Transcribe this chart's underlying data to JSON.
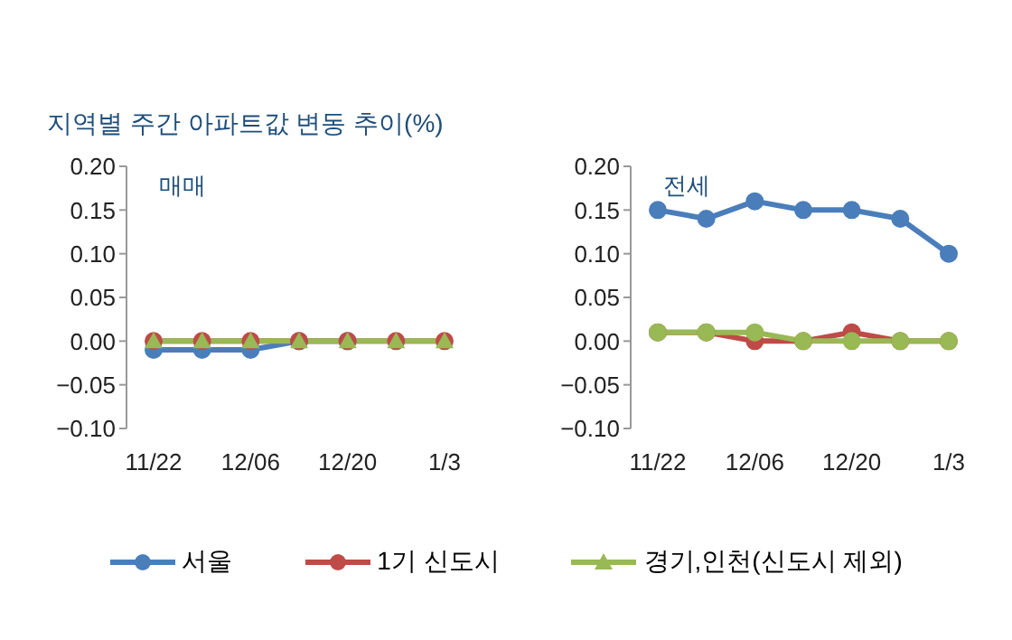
{
  "chart_data": [
    {
      "type": "line",
      "title": "지역별 주간 아파트값 변동 추이(%)",
      "subtitle": "매매",
      "categories": [
        "11/22",
        null,
        "12/06",
        null,
        "12/20",
        null,
        "1/3"
      ],
      "series": [
        {
          "name": "서울",
          "color": "#4a7ebb",
          "marker": "circle",
          "values": [
            -0.01,
            -0.01,
            -0.01,
            0,
            0,
            null,
            null
          ]
        },
        {
          "name": "1기 신도시",
          "color": "#be4b48",
          "marker": "circle",
          "values": [
            0,
            0,
            0,
            0,
            0,
            0,
            0
          ]
        },
        {
          "name": "경기,인천(신도시 제외)",
          "color": "#98b954",
          "marker": "triangle",
          "values": [
            0,
            0,
            0,
            0,
            0,
            0,
            0
          ]
        }
      ],
      "ylim": [
        -0.1,
        0.2
      ],
      "yticks": [
        {
          "value": -0.1,
          "label": "−0.10"
        },
        {
          "value": -0.05,
          "label": "−0.05"
        },
        {
          "value": 0,
          "label": "0.00"
        },
        {
          "value": 0.05,
          "label": "0.05"
        },
        {
          "value": 0.1,
          "label": "0.10"
        },
        {
          "value": 0.15,
          "label": "0.15"
        },
        {
          "value": 0.2,
          "label": "0.20"
        }
      ],
      "grid": false,
      "legend": "bottom"
    },
    {
      "type": "line",
      "subtitle": "전세",
      "categories": [
        "11/22",
        null,
        "12/06",
        null,
        "12/20",
        null,
        "1/3"
      ],
      "series": [
        {
          "color": "#4a7ebb",
          "marker": "circle",
          "values": [
            0.15,
            0.14,
            0.16,
            0.15,
            0.15,
            0.14,
            0.1
          ]
        },
        {
          "color": "#be4b48",
          "marker": "circle",
          "values": [
            0.01,
            0.01,
            0,
            0,
            0.01,
            0,
            0
          ]
        },
        {
          "color": "#98b954",
          "marker": "circle",
          "values": [
            0.01,
            0.01,
            0.01,
            0,
            0,
            0,
            0
          ]
        }
      ],
      "ylim": [
        -0.1,
        0.2
      ],
      "yticks": [
        {
          "value": -0.1,
          "label": "−0.10"
        },
        {
          "value": -0.05,
          "label": "−0.05"
        },
        {
          "value": 0,
          "label": "0.00"
        },
        {
          "value": 0.05,
          "label": "0.05"
        },
        {
          "value": 0.1,
          "label": "0.10"
        },
        {
          "value": 0.15,
          "label": "0.15"
        },
        {
          "value": 0.2,
          "label": "0.20"
        }
      ],
      "grid": false
    }
  ]
}
